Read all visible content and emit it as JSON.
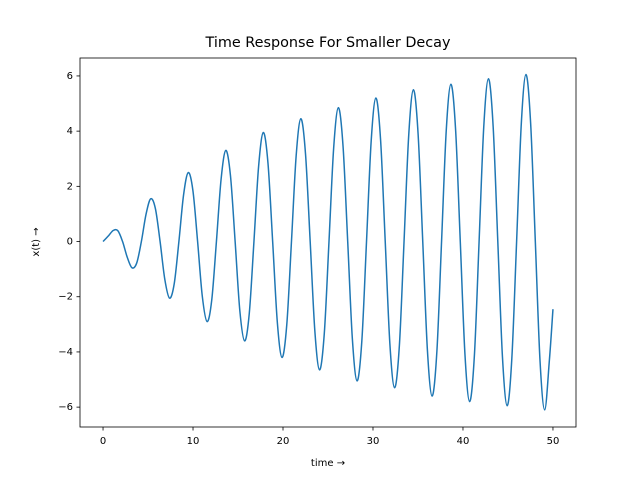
{
  "chart_data": {
    "type": "line",
    "title": "Time Response For Smaller Decay",
    "xlabel": "time  →",
    "ylabel": "x(t)  →",
    "x": [
      0,
      0.61,
      1.13,
      1.65,
      2.17,
      2.69,
      3.21,
      3.74,
      4.26,
      4.78,
      5.3,
      5.82,
      6.34,
      6.86,
      7.39,
      7.91,
      8.43,
      8.95,
      9.47,
      9.99,
      10.51,
      11.03,
      11.56,
      12.08,
      12.6,
      13.12,
      13.64,
      14.16,
      14.68,
      15.2,
      15.73,
      16.25,
      16.77,
      17.29,
      17.81,
      18.33,
      18.85,
      19.37,
      19.89,
      20.42,
      20.94,
      21.46,
      21.98,
      22.5,
      23.02,
      23.54,
      24.06,
      24.59,
      25.11,
      25.63,
      26.15,
      26.67,
      27.19,
      27.71,
      28.23,
      28.76,
      29.28,
      29.8,
      30.32,
      30.84,
      31.36,
      31.88,
      32.4,
      32.93,
      33.45,
      33.97,
      34.49,
      35.01,
      35.53,
      36.05,
      36.57,
      37.1,
      37.62,
      38.14,
      38.66,
      39.18,
      39.7,
      40.22,
      40.74,
      41.27,
      41.79,
      42.31,
      42.83,
      43.35,
      43.87,
      44.39,
      44.91,
      45.43,
      45.96,
      46.48,
      47,
      47.52,
      48.04,
      48.56,
      49.08,
      49.6,
      50
    ],
    "series": [
      {
        "color": "#1f77b4",
        "values": [
          0,
          0.21,
          0.4,
          0.39,
          0,
          -0.57,
          -0.95,
          -0.78,
          0,
          0.99,
          1.55,
          1.19,
          0,
          -1.36,
          -2.05,
          -1.53,
          0,
          1.69,
          2.5,
          1.84,
          0,
          -1.98,
          -2.9,
          -2.12,
          0,
          2.26,
          3.3,
          2.39,
          0,
          -2.5,
          -3.6,
          -2.61,
          0,
          2.73,
          3.95,
          2.84,
          0,
          -2.93,
          -4.2,
          -3.01,
          0,
          3.1,
          4.45,
          3.18,
          0,
          -3.25,
          -4.65,
          -3.32,
          0,
          3.39,
          4.85,
          3.46,
          0,
          -3.54,
          -5.05,
          -3.6,
          0,
          3.65,
          5.2,
          3.7,
          0,
          -3.73,
          -5.3,
          -3.78,
          0,
          3.85,
          5.5,
          3.91,
          0,
          -3.95,
          -5.6,
          -3.98,
          0,
          4.02,
          5.7,
          4.05,
          0,
          -4.09,
          -5.8,
          -4.12,
          0,
          4.16,
          5.9,
          4.18,
          0,
          -4.2,
          -5.95,
          -4.23,
          0,
          4.26,
          6.05,
          4.28,
          0,
          -4.31,
          -6.1,
          -4.31,
          -2.45
        ]
      }
    ],
    "xlim": [
      -2.56,
      52.56
    ],
    "ylim": [
      -6.72,
      6.65
    ],
    "xticks": [
      0,
      10,
      20,
      30,
      40,
      50
    ],
    "yticks": [
      {
        "value": -6,
        "label": "−6"
      },
      {
        "value": -4,
        "label": "−4"
      },
      {
        "value": -2,
        "label": "−2"
      },
      0,
      2,
      4,
      6
    ],
    "grid": false
  }
}
